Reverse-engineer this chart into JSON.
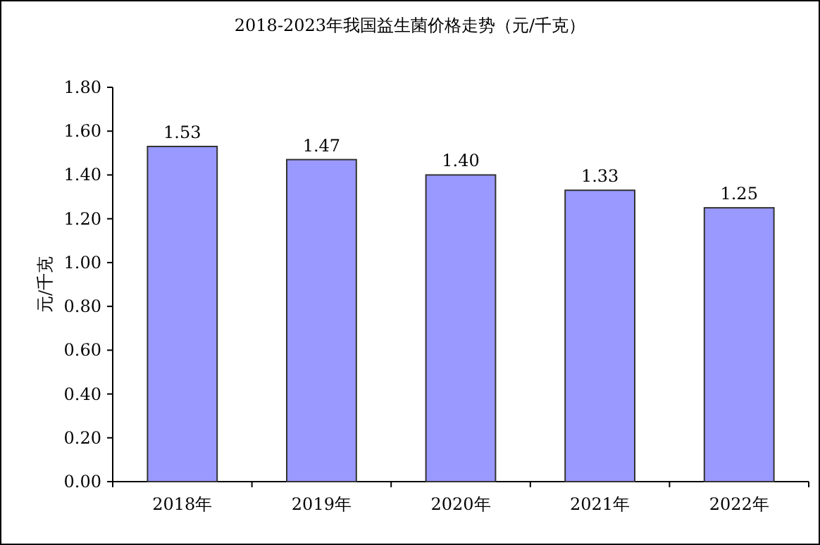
{
  "chart_data": {
    "type": "bar",
    "title": "2018-2023年我国益生菌价格走势（元/千克）",
    "ylabel": "元/千克",
    "categories": [
      "2018年",
      "2019年",
      "2020年",
      "2021年",
      "2022年"
    ],
    "values": [
      1.53,
      1.47,
      1.4,
      1.33,
      1.25
    ],
    "value_labels": [
      "1.53",
      "1.47",
      "1.40",
      "1.33",
      "1.25"
    ],
    "color": "#9999ff",
    "ylim": [
      0,
      1.8
    ],
    "yticks": [
      {
        "value": 0,
        "label": "0.00"
      },
      {
        "value": 0.2,
        "label": "0.20"
      },
      {
        "value": 0.4,
        "label": "0.40"
      },
      {
        "value": 0.6,
        "label": "0.60"
      },
      {
        "value": 0.8,
        "label": "0.80"
      },
      {
        "value": 1.0,
        "label": "1.00"
      },
      {
        "value": 1.2,
        "label": "1.20"
      },
      {
        "value": 1.4,
        "label": "1.40"
      },
      {
        "value": 1.6,
        "label": "1.60"
      },
      {
        "value": 1.8,
        "label": "1.80"
      }
    ]
  }
}
